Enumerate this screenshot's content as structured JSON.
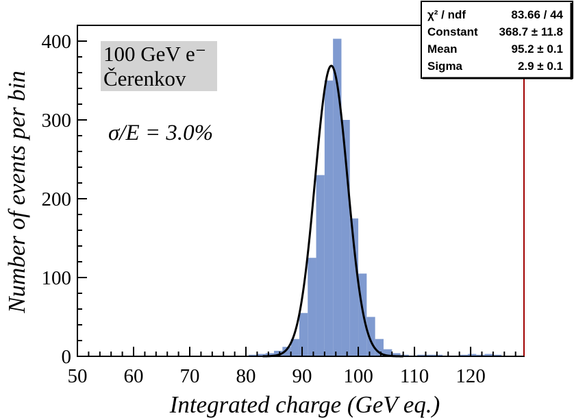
{
  "chart_data": {
    "type": "bar",
    "title": "",
    "xlabel": "Integrated charge (GeV eq.)",
    "ylabel": "Number of events per bin",
    "xlim": [
      50,
      129.5
    ],
    "ylim": [
      0,
      420
    ],
    "xticks": [
      50,
      60,
      70,
      80,
      90,
      100,
      110,
      120
    ],
    "yticks": [
      0,
      100,
      200,
      300,
      400
    ],
    "bin_width": 1.5,
    "grid": false,
    "legend": "none",
    "histogram": {
      "color": "#7f9ad0",
      "bin_lows": [
        80.5,
        82,
        83.5,
        85,
        86.5,
        88,
        89.5,
        91,
        92.5,
        94,
        95.5,
        97,
        98.5,
        100,
        101.5,
        103,
        104.5,
        106,
        107.5,
        109,
        110.5,
        112,
        113.5,
        115,
        116.5,
        118,
        119.5,
        121,
        122.5,
        124
      ],
      "counts": [
        2,
        3,
        4,
        7,
        12,
        22,
        55,
        125,
        230,
        350,
        403,
        300,
        175,
        105,
        50,
        22,
        9,
        4,
        2,
        1,
        2,
        2,
        2,
        1,
        1,
        2,
        3,
        2,
        3,
        2
      ]
    },
    "fit": {
      "name": "gaus",
      "color": "#000000",
      "constant": 368.7,
      "mean": 95.2,
      "sigma": 2.9,
      "x_range": [
        83,
        108
      ]
    },
    "annotations": {
      "label_line1": "100 GeV e⁻",
      "label_line2": "Čerenkov",
      "resolution": "σ/E = 3.0%"
    },
    "stats_box": [
      {
        "label": "χ² / ndf",
        "value": "83.66 / 44"
      },
      {
        "label": "Constant",
        "value": "368.7 ± 11.8"
      },
      {
        "label": "Mean",
        "value": "95.2 ± 0.1"
      },
      {
        "label": "Sigma",
        "value": "2.9 ± 0.1"
      }
    ],
    "x_tick_labels": [
      "50",
      "60",
      "70",
      "80",
      "90",
      "100",
      "110",
      "120"
    ],
    "y_tick_labels": [
      "0",
      "100",
      "200",
      "300",
      "400"
    ]
  }
}
